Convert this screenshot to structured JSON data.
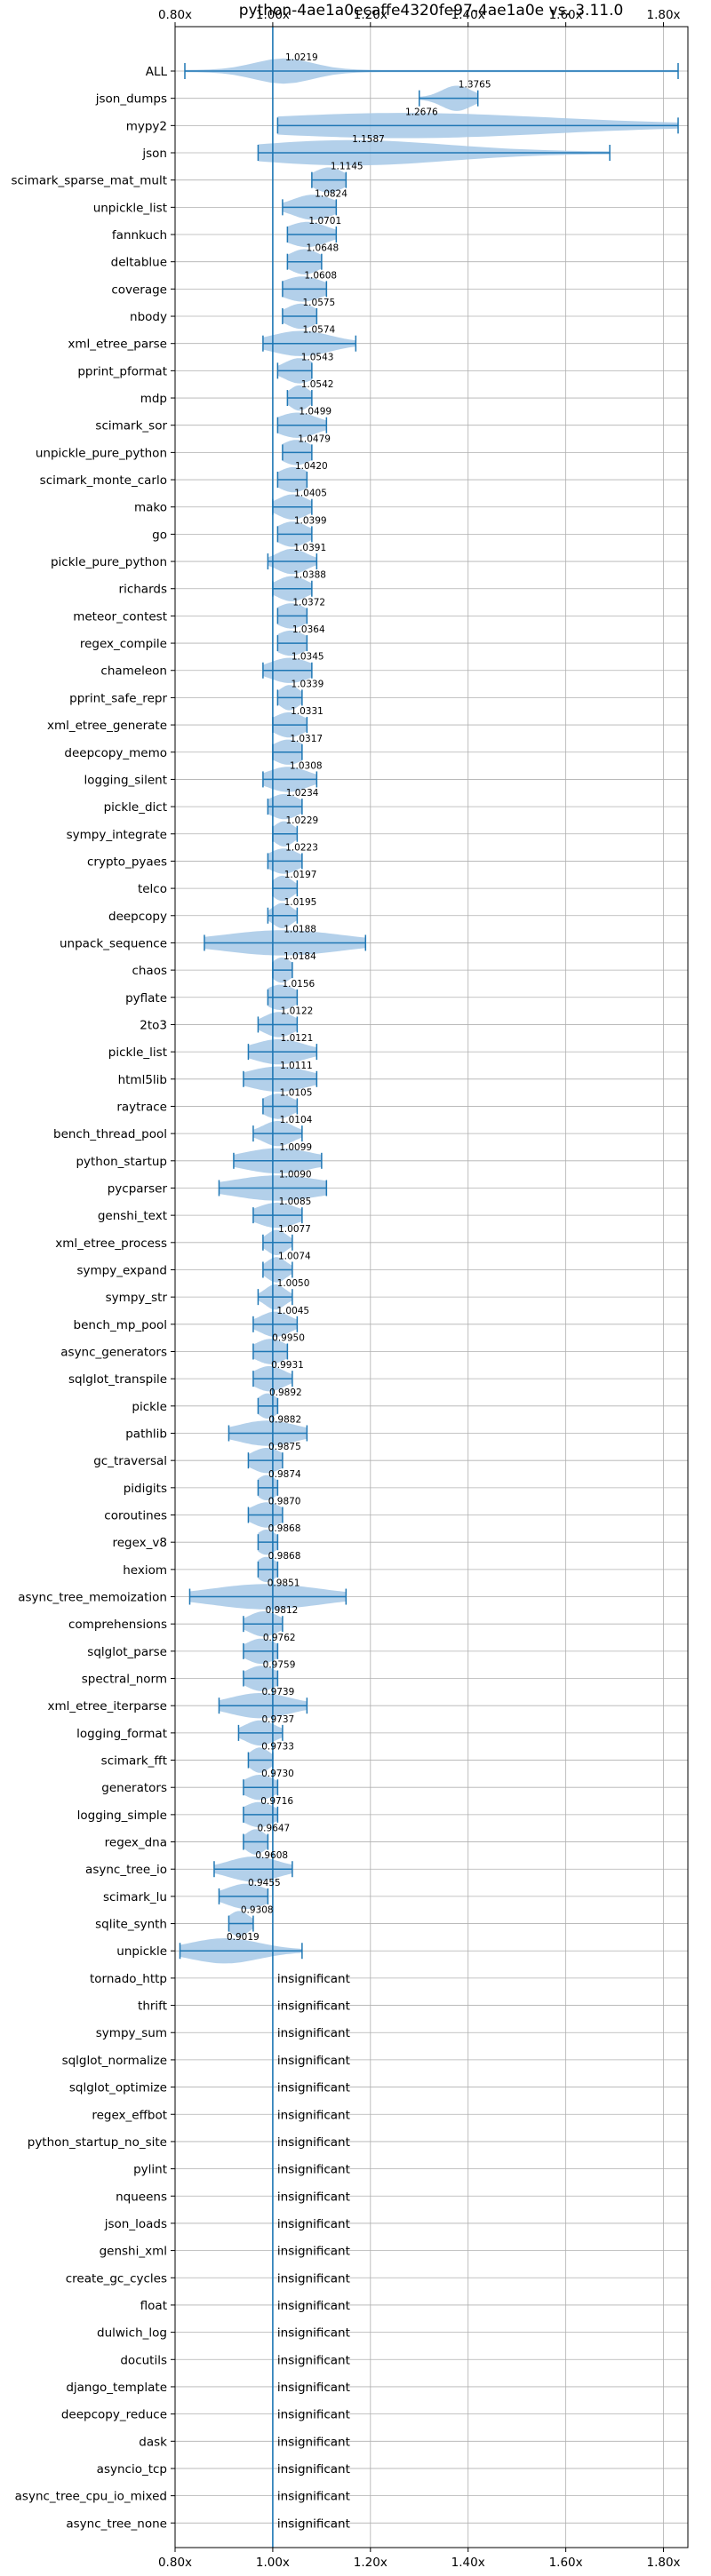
{
  "chart_data": {
    "type": "violin",
    "title": "python-4ae1a0ecaffe4320fe97-4ae1a0e vs. 3.11.0",
    "xlabel": "",
    "ylabel": "",
    "xlim": [
      0.8,
      1.85
    ],
    "x_ticks": [
      0.8,
      1.0,
      1.2,
      1.4,
      1.6,
      1.8
    ],
    "x_tick_labels": [
      "0.80x",
      "1.00x",
      "1.20x",
      "1.40x",
      "1.60x",
      "1.80x"
    ],
    "reference_line": 1.0,
    "grid": true,
    "colors": {
      "violin": "#a6c8e6",
      "line": "#1f77b4",
      "grid": "#b0b0b0"
    },
    "insignificant_label": "insignificant",
    "benchmarks": [
      {
        "name": "ALL",
        "mean": 1.0219,
        "label": "1.0219",
        "min": 0.82,
        "max": 1.83,
        "spread": 0.06
      },
      {
        "name": "json_dumps",
        "mean": 1.3765,
        "label": "1.3765",
        "min": 1.3,
        "max": 1.42,
        "spread": 0.03
      },
      {
        "name": "mypy2",
        "mean": 1.2676,
        "label": "1.2676",
        "min": 1.01,
        "max": 1.83,
        "spread": 0.3
      },
      {
        "name": "json",
        "mean": 1.1587,
        "label": "1.1587",
        "min": 0.97,
        "max": 1.69,
        "spread": 0.2
      },
      {
        "name": "scimark_sparse_mat_mult",
        "mean": 1.1145,
        "label": "1.1145",
        "min": 1.08,
        "max": 1.15,
        "spread": 0.03
      },
      {
        "name": "unpickle_list",
        "mean": 1.0824,
        "label": "1.0824",
        "min": 1.02,
        "max": 1.13,
        "spread": 0.04
      },
      {
        "name": "fannkuch",
        "mean": 1.0701,
        "label": "1.0701",
        "min": 1.03,
        "max": 1.13,
        "spread": 0.04
      },
      {
        "name": "deltablue",
        "mean": 1.0648,
        "label": "1.0648",
        "min": 1.03,
        "max": 1.1,
        "spread": 0.03
      },
      {
        "name": "coverage",
        "mean": 1.0608,
        "label": "1.0608",
        "min": 1.02,
        "max": 1.11,
        "spread": 0.04
      },
      {
        "name": "nbody",
        "mean": 1.0575,
        "label": "1.0575",
        "min": 1.02,
        "max": 1.09,
        "spread": 0.03
      },
      {
        "name": "xml_etree_parse",
        "mean": 1.0574,
        "label": "1.0574",
        "min": 0.98,
        "max": 1.17,
        "spread": 0.06
      },
      {
        "name": "pprint_pformat",
        "mean": 1.0543,
        "label": "1.0543",
        "min": 1.01,
        "max": 1.08,
        "spread": 0.03
      },
      {
        "name": "mdp",
        "mean": 1.0542,
        "label": "1.0542",
        "min": 1.03,
        "max": 1.08,
        "spread": 0.02
      },
      {
        "name": "scimark_sor",
        "mean": 1.0499,
        "label": "1.0499",
        "min": 1.01,
        "max": 1.11,
        "spread": 0.04
      },
      {
        "name": "unpickle_pure_python",
        "mean": 1.0479,
        "label": "1.0479",
        "min": 1.02,
        "max": 1.08,
        "spread": 0.03
      },
      {
        "name": "scimark_monte_carlo",
        "mean": 1.042,
        "label": "1.0420",
        "min": 1.01,
        "max": 1.07,
        "spread": 0.03
      },
      {
        "name": "mako",
        "mean": 1.0405,
        "label": "1.0405",
        "min": 1.0,
        "max": 1.08,
        "spread": 0.03
      },
      {
        "name": "go",
        "mean": 1.0399,
        "label": "1.0399",
        "min": 1.01,
        "max": 1.08,
        "spread": 0.03
      },
      {
        "name": "pickle_pure_python",
        "mean": 1.0391,
        "label": "1.0391",
        "min": 0.99,
        "max": 1.09,
        "spread": 0.03
      },
      {
        "name": "richards",
        "mean": 1.0388,
        "label": "1.0388",
        "min": 1.0,
        "max": 1.08,
        "spread": 0.03
      },
      {
        "name": "meteor_contest",
        "mean": 1.0372,
        "label": "1.0372",
        "min": 1.01,
        "max": 1.07,
        "spread": 0.03
      },
      {
        "name": "regex_compile",
        "mean": 1.0364,
        "label": "1.0364",
        "min": 1.01,
        "max": 1.07,
        "spread": 0.03
      },
      {
        "name": "chameleon",
        "mean": 1.0345,
        "label": "1.0345",
        "min": 0.98,
        "max": 1.08,
        "spread": 0.04
      },
      {
        "name": "pprint_safe_repr",
        "mean": 1.0339,
        "label": "1.0339",
        "min": 1.01,
        "max": 1.06,
        "spread": 0.02
      },
      {
        "name": "xml_etree_generate",
        "mean": 1.0331,
        "label": "1.0331",
        "min": 1.0,
        "max": 1.07,
        "spread": 0.03
      },
      {
        "name": "deepcopy_memo",
        "mean": 1.0317,
        "label": "1.0317",
        "min": 1.0,
        "max": 1.06,
        "spread": 0.03
      },
      {
        "name": "logging_silent",
        "mean": 1.0308,
        "label": "1.0308",
        "min": 0.98,
        "max": 1.09,
        "spread": 0.04
      },
      {
        "name": "pickle_dict",
        "mean": 1.0234,
        "label": "1.0234",
        "min": 0.99,
        "max": 1.06,
        "spread": 0.03
      },
      {
        "name": "sympy_integrate",
        "mean": 1.0229,
        "label": "1.0229",
        "min": 1.0,
        "max": 1.05,
        "spread": 0.02
      },
      {
        "name": "crypto_pyaes",
        "mean": 1.0223,
        "label": "1.0223",
        "min": 0.99,
        "max": 1.06,
        "spread": 0.03
      },
      {
        "name": "telco",
        "mean": 1.0197,
        "label": "1.0197",
        "min": 1.0,
        "max": 1.05,
        "spread": 0.02
      },
      {
        "name": "deepcopy",
        "mean": 1.0195,
        "label": "1.0195",
        "min": 0.99,
        "max": 1.05,
        "spread": 0.02
      },
      {
        "name": "unpack_sequence",
        "mean": 1.0188,
        "label": "1.0188",
        "min": 0.86,
        "max": 1.19,
        "spread": 0.12
      },
      {
        "name": "chaos",
        "mean": 1.0184,
        "label": "1.0184",
        "min": 1.0,
        "max": 1.04,
        "spread": 0.02
      },
      {
        "name": "pyflate",
        "mean": 1.0156,
        "label": "1.0156",
        "min": 0.99,
        "max": 1.05,
        "spread": 0.03
      },
      {
        "name": "2to3",
        "mean": 1.0122,
        "label": "1.0122",
        "min": 0.97,
        "max": 1.05,
        "spread": 0.03
      },
      {
        "name": "pickle_list",
        "mean": 1.0121,
        "label": "1.0121",
        "min": 0.95,
        "max": 1.09,
        "spread": 0.05
      },
      {
        "name": "html5lib",
        "mean": 1.0111,
        "label": "1.0111",
        "min": 0.94,
        "max": 1.09,
        "spread": 0.06
      },
      {
        "name": "raytrace",
        "mean": 1.0105,
        "label": "1.0105",
        "min": 0.98,
        "max": 1.05,
        "spread": 0.03
      },
      {
        "name": "bench_thread_pool",
        "mean": 1.0104,
        "label": "1.0104",
        "min": 0.96,
        "max": 1.06,
        "spread": 0.03
      },
      {
        "name": "python_startup",
        "mean": 1.0099,
        "label": "1.0099",
        "min": 0.92,
        "max": 1.1,
        "spread": 0.07
      },
      {
        "name": "pycparser",
        "mean": 1.009,
        "label": "1.0090",
        "min": 0.89,
        "max": 1.11,
        "spread": 0.09
      },
      {
        "name": "genshi_text",
        "mean": 1.0085,
        "label": "1.0085",
        "min": 0.96,
        "max": 1.06,
        "spread": 0.04
      },
      {
        "name": "xml_etree_process",
        "mean": 1.0077,
        "label": "1.0077",
        "min": 0.98,
        "max": 1.04,
        "spread": 0.02
      },
      {
        "name": "sympy_expand",
        "mean": 1.0074,
        "label": "1.0074",
        "min": 0.98,
        "max": 1.04,
        "spread": 0.02
      },
      {
        "name": "sympy_str",
        "mean": 1.005,
        "label": "1.0050",
        "min": 0.97,
        "max": 1.04,
        "spread": 0.02
      },
      {
        "name": "bench_mp_pool",
        "mean": 1.0045,
        "label": "1.0045",
        "min": 0.96,
        "max": 1.05,
        "spread": 0.03
      },
      {
        "name": "async_generators",
        "mean": 0.995,
        "label": "0.9950",
        "min": 0.96,
        "max": 1.03,
        "spread": 0.03
      },
      {
        "name": "sqlglot_transpile",
        "mean": 0.9931,
        "label": "0.9931",
        "min": 0.96,
        "max": 1.04,
        "spread": 0.03
      },
      {
        "name": "pickle",
        "mean": 0.9892,
        "label": "0.9892",
        "min": 0.97,
        "max": 1.01,
        "spread": 0.02
      },
      {
        "name": "pathlib",
        "mean": 0.9882,
        "label": "0.9882",
        "min": 0.91,
        "max": 1.07,
        "spread": 0.06
      },
      {
        "name": "gc_traversal",
        "mean": 0.9875,
        "label": "0.9875",
        "min": 0.95,
        "max": 1.02,
        "spread": 0.03
      },
      {
        "name": "pidigits",
        "mean": 0.9874,
        "label": "0.9874",
        "min": 0.97,
        "max": 1.01,
        "spread": 0.02
      },
      {
        "name": "coroutines",
        "mean": 0.987,
        "label": "0.9870",
        "min": 0.95,
        "max": 1.02,
        "spread": 0.03
      },
      {
        "name": "regex_v8",
        "mean": 0.9868,
        "label": "0.9868",
        "min": 0.97,
        "max": 1.01,
        "spread": 0.02
      },
      {
        "name": "hexiom",
        "mean": 0.9868,
        "label": "0.9868",
        "min": 0.97,
        "max": 1.01,
        "spread": 0.02
      },
      {
        "name": "async_tree_memoization",
        "mean": 0.9851,
        "label": "0.9851",
        "min": 0.83,
        "max": 1.15,
        "spread": 0.11
      },
      {
        "name": "comprehensions",
        "mean": 0.9812,
        "label": "0.9812",
        "min": 0.94,
        "max": 1.02,
        "spread": 0.03
      },
      {
        "name": "sqlglot_parse",
        "mean": 0.9762,
        "label": "0.9762",
        "min": 0.94,
        "max": 1.01,
        "spread": 0.03
      },
      {
        "name": "spectral_norm",
        "mean": 0.9759,
        "label": "0.9759",
        "min": 0.94,
        "max": 1.01,
        "spread": 0.03
      },
      {
        "name": "xml_etree_iterparse",
        "mean": 0.9739,
        "label": "0.9739",
        "min": 0.89,
        "max": 1.07,
        "spread": 0.06
      },
      {
        "name": "logging_format",
        "mean": 0.9737,
        "label": "0.9737",
        "min": 0.93,
        "max": 1.02,
        "spread": 0.03
      },
      {
        "name": "scimark_fft",
        "mean": 0.9733,
        "label": "0.9733",
        "min": 0.95,
        "max": 1.0,
        "spread": 0.02
      },
      {
        "name": "generators",
        "mean": 0.973,
        "label": "0.9730",
        "min": 0.94,
        "max": 1.01,
        "spread": 0.03
      },
      {
        "name": "logging_simple",
        "mean": 0.9716,
        "label": "0.9716",
        "min": 0.94,
        "max": 1.01,
        "spread": 0.03
      },
      {
        "name": "regex_dna",
        "mean": 0.9647,
        "label": "0.9647",
        "min": 0.94,
        "max": 0.99,
        "spread": 0.02
      },
      {
        "name": "async_tree_io",
        "mean": 0.9608,
        "label": "0.9608",
        "min": 0.88,
        "max": 1.04,
        "spread": 0.05
      },
      {
        "name": "scimark_lu",
        "mean": 0.9455,
        "label": "0.9455",
        "min": 0.89,
        "max": 0.99,
        "spread": 0.04
      },
      {
        "name": "sqlite_synth",
        "mean": 0.9308,
        "label": "0.9308",
        "min": 0.91,
        "max": 0.96,
        "spread": 0.02
      },
      {
        "name": "unpickle",
        "mean": 0.9019,
        "label": "0.9019",
        "min": 0.81,
        "max": 1.06,
        "spread": 0.07
      },
      {
        "name": "tornado_http",
        "insignificant": true
      },
      {
        "name": "thrift",
        "insignificant": true
      },
      {
        "name": "sympy_sum",
        "insignificant": true
      },
      {
        "name": "sqlglot_normalize",
        "insignificant": true
      },
      {
        "name": "sqlglot_optimize",
        "insignificant": true
      },
      {
        "name": "regex_effbot",
        "insignificant": true
      },
      {
        "name": "python_startup_no_site",
        "insignificant": true
      },
      {
        "name": "pylint",
        "insignificant": true
      },
      {
        "name": "nqueens",
        "insignificant": true
      },
      {
        "name": "json_loads",
        "insignificant": true
      },
      {
        "name": "genshi_xml",
        "insignificant": true
      },
      {
        "name": "create_gc_cycles",
        "insignificant": true
      },
      {
        "name": "float",
        "insignificant": true
      },
      {
        "name": "dulwich_log",
        "insignificant": true
      },
      {
        "name": "docutils",
        "insignificant": true
      },
      {
        "name": "django_template",
        "insignificant": true
      },
      {
        "name": "deepcopy_reduce",
        "insignificant": true
      },
      {
        "name": "dask",
        "insignificant": true
      },
      {
        "name": "asyncio_tcp",
        "insignificant": true
      },
      {
        "name": "async_tree_cpu_io_mixed",
        "insignificant": true
      },
      {
        "name": "async_tree_none",
        "insignificant": true
      }
    ]
  }
}
